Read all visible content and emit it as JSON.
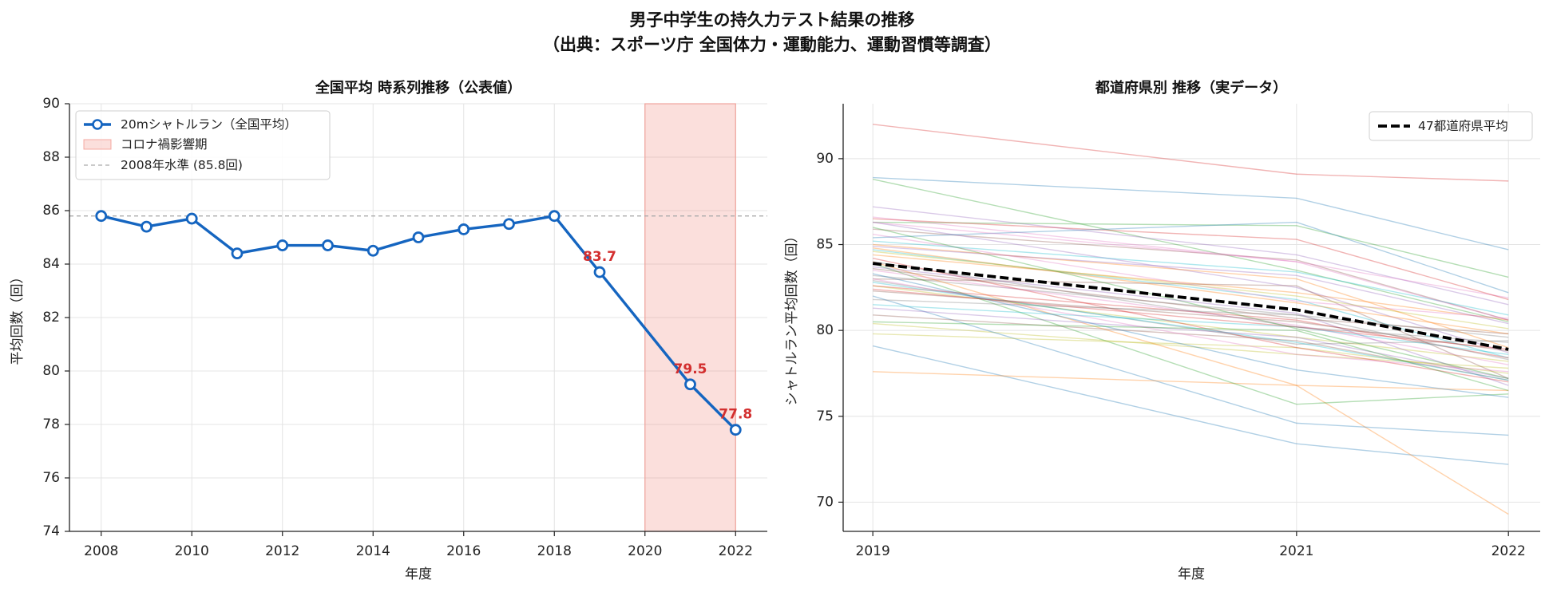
{
  "figure": {
    "title_line1": "男子中学生の持久力テスト結果の推移",
    "title_line2": "（出典：スポーツ庁 全国体力・運動能力、運動習慣等調査）"
  },
  "chart_data": [
    {
      "type": "line",
      "title": "全国平均 時系列推移（公表値）",
      "xlabel": "年度",
      "ylabel": "平均回数（回）",
      "xlim": [
        2007.3,
        2022.7
      ],
      "ylim": [
        74,
        90
      ],
      "xticks": [
        2008,
        2010,
        2012,
        2014,
        2016,
        2018,
        2020,
        2022
      ],
      "yticks": [
        74,
        76,
        78,
        80,
        82,
        84,
        86,
        88,
        90
      ],
      "grid": true,
      "legend_position": "upper-left",
      "series": [
        {
          "name": "20mシャトルラン（全国平均）",
          "color": "#1565c0",
          "x": [
            2008,
            2009,
            2010,
            2011,
            2012,
            2013,
            2014,
            2015,
            2016,
            2017,
            2018,
            2019,
            2021,
            2022
          ],
          "y": [
            85.8,
            85.4,
            85.7,
            84.4,
            84.7,
            84.7,
            84.5,
            85.0,
            85.3,
            85.5,
            85.8,
            83.7,
            79.5,
            77.8
          ]
        }
      ],
      "shaded_span": {
        "name": "コロナ禍影響期",
        "x": [
          2020,
          2022
        ],
        "color": "#f28b82"
      },
      "reference_line": {
        "name": "2008年水準 (85.8回)",
        "y": 85.8,
        "color": "#aaaaaa"
      },
      "annotation_color": "#d32f2f",
      "annotations": [
        {
          "x": 2019,
          "y": 83.7,
          "label": "83.7"
        },
        {
          "x": 2021,
          "y": 79.5,
          "label": "79.5"
        },
        {
          "x": 2022,
          "y": 77.8,
          "label": "77.8"
        }
      ]
    },
    {
      "type": "line",
      "title": "都道府県別 推移（実データ）",
      "xlabel": "年度",
      "ylabel": "シャトルラン平均回数（回）",
      "xlim": [
        2018.86,
        2022.15
      ],
      "ylim": [
        68.3,
        93.2
      ],
      "xticks": [
        2019,
        2021,
        2022
      ],
      "yticks": [
        70,
        75,
        80,
        85,
        90
      ],
      "grid": true,
      "legend_position": "upper-right",
      "x": [
        2019,
        2021,
        2022
      ],
      "palette": [
        "#1f77b4",
        "#ff7f0e",
        "#2ca02c",
        "#d62728",
        "#9467bd",
        "#8c564b",
        "#e377c2",
        "#7f7f7f",
        "#bcbd22",
        "#17becf"
      ],
      "prefecture_series": [
        [
          88.9,
          87.7,
          84.7
        ],
        [
          84.4,
          82.2,
          80.6
        ],
        [
          88.8,
          83.5,
          80.5
        ],
        [
          92.0,
          89.1,
          88.7
        ],
        [
          87.2,
          84.4,
          81.5
        ],
        [
          85.9,
          84.1,
          80.6
        ],
        [
          86.6,
          84.0,
          81.9
        ],
        [
          83.2,
          80.9,
          79.6
        ],
        [
          80.4,
          78.6,
          77.8
        ],
        [
          84.7,
          81.8,
          78.4
        ],
        [
          79.1,
          73.4,
          72.2
        ],
        [
          84.0,
          76.8,
          69.3
        ],
        [
          86.3,
          86.1,
          83.1
        ],
        [
          86.5,
          85.3,
          81.8
        ],
        [
          86.3,
          82.5,
          78.7
        ],
        [
          83.0,
          82.6,
          77.2
        ],
        [
          85.6,
          81.7,
          80.7
        ],
        [
          84.0,
          80.2,
          79.3
        ],
        [
          82.6,
          79.6,
          78.2
        ],
        [
          85.2,
          83.4,
          80.9
        ],
        [
          82.0,
          74.6,
          73.9
        ],
        [
          77.6,
          76.8,
          76.5
        ],
        [
          83.9,
          75.7,
          76.3
        ],
        [
          82.6,
          80.6,
          78.4
        ],
        [
          81.3,
          79.6,
          77.2
        ],
        [
          80.9,
          79.4,
          77.1
        ],
        [
          83.5,
          80.3,
          78.0
        ],
        [
          82.9,
          79.2,
          79.4
        ],
        [
          79.8,
          79.0,
          77.5
        ],
        [
          81.5,
          80.2,
          78.6
        ],
        [
          85.4,
          86.3,
          82.2
        ],
        [
          84.8,
          81.6,
          79.8
        ],
        [
          86.0,
          80.1,
          77.2
        ],
        [
          84.2,
          79.0,
          77.0
        ],
        [
          83.7,
          81.0,
          76.8
        ],
        [
          82.3,
          80.5,
          78.8
        ],
        [
          83.0,
          78.6,
          77.6
        ],
        [
          81.8,
          80.9,
          78.3
        ],
        [
          84.6,
          82.0,
          80.1
        ],
        [
          82.8,
          79.3,
          77.1
        ],
        [
          83.3,
          77.7,
          76.1
        ],
        [
          85.0,
          83.0,
          79.0
        ],
        [
          80.5,
          80.0,
          76.5
        ],
        [
          82.4,
          80.2,
          78.9
        ],
        [
          84.9,
          83.2,
          80.4
        ],
        [
          83.6,
          80.7,
          79.8
        ],
        [
          86.3,
          84.0,
          80.6
        ]
      ],
      "average": {
        "name": "47都道府県平均",
        "color": "#000000",
        "values": [
          83.9,
          81.2,
          78.9
        ]
      }
    }
  ]
}
